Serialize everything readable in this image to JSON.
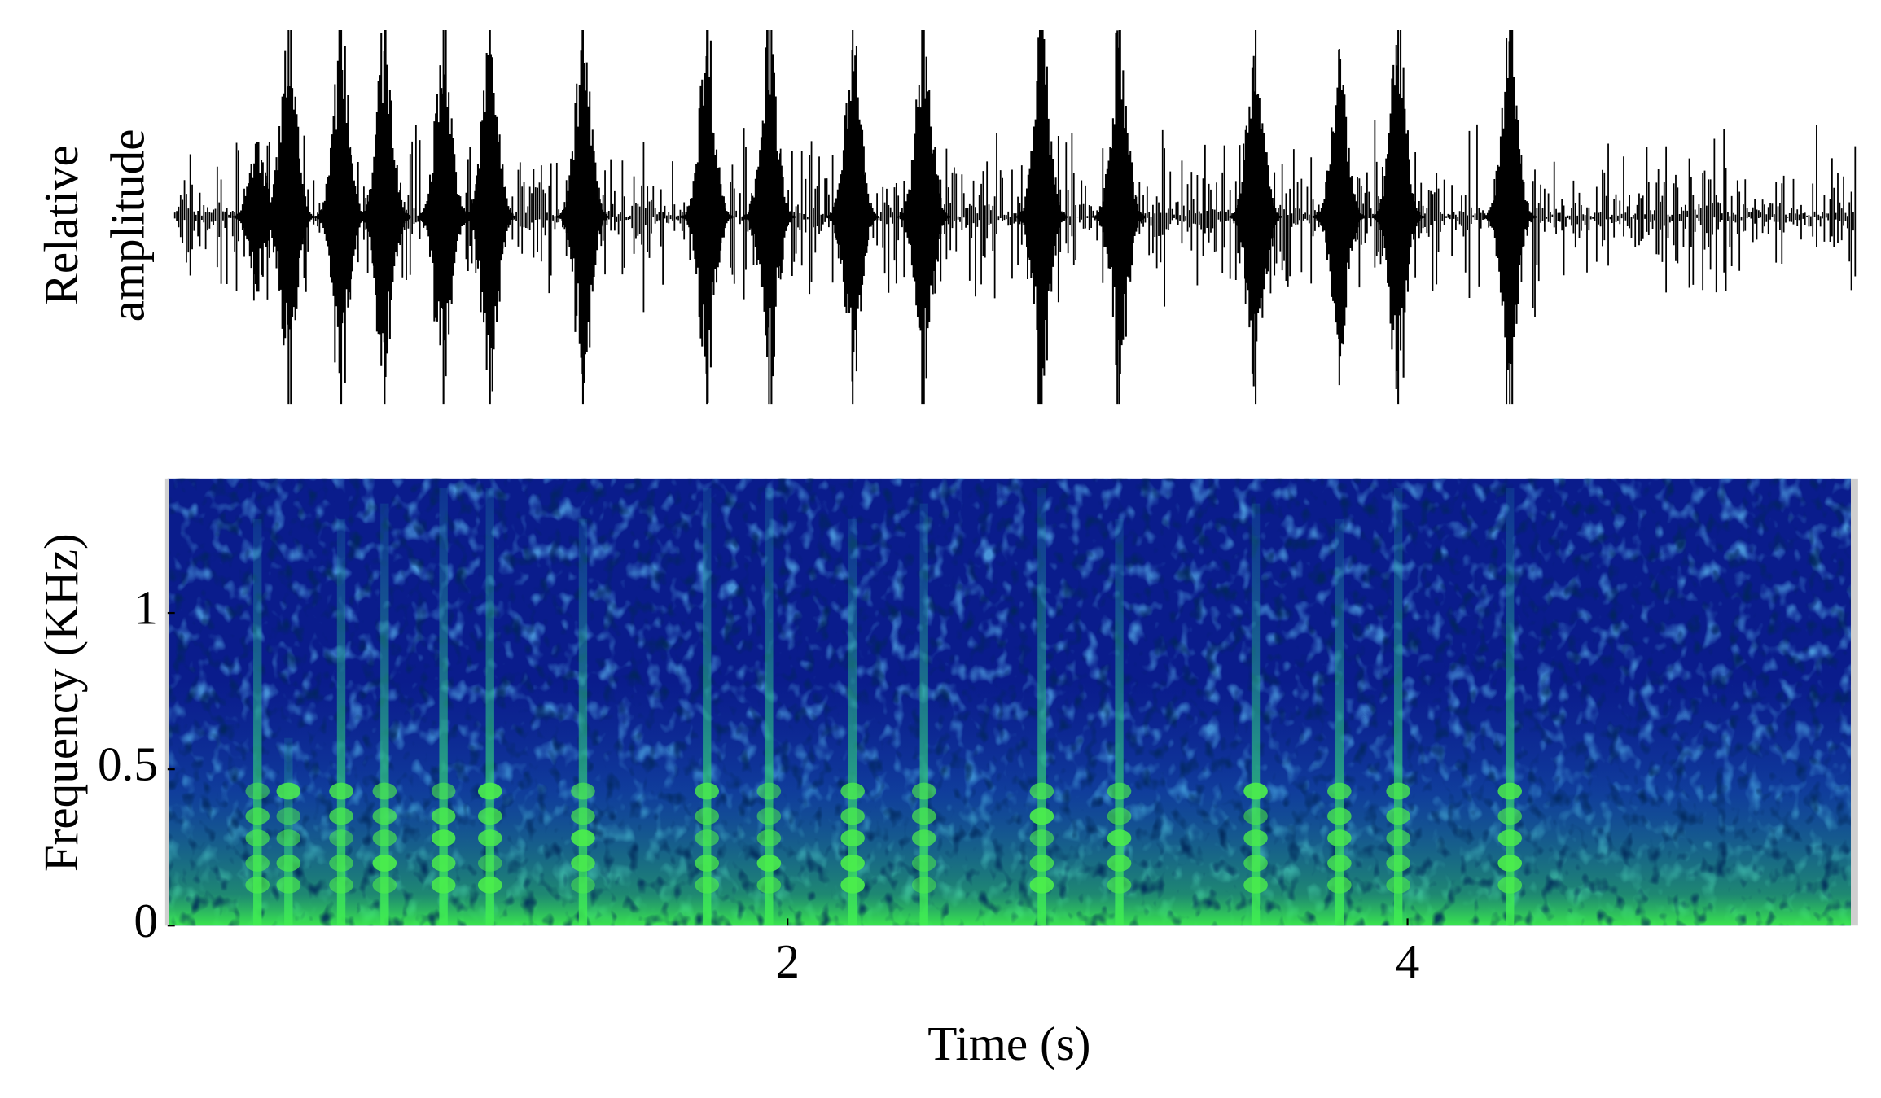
{
  "chart_data": [
    {
      "type": "waveform",
      "y_label": [
        "Relative",
        "amplitude"
      ],
      "x": [
        0.29,
        0.39,
        0.56,
        0.7,
        0.89,
        1.04,
        1.34,
        1.74,
        1.94,
        2.21,
        2.44,
        2.82,
        3.07,
        3.51,
        3.78,
        3.97,
        4.33
      ],
      "values": [
        0.4,
        1,
        1,
        1,
        1,
        1,
        1,
        1,
        1,
        1,
        1,
        1,
        1,
        1,
        0.9,
        1,
        1
      ],
      "color": "#000000"
    },
    {
      "type": "spectrogram",
      "x_label": "Time (s)",
      "y_label": "Frequency (KHz)",
      "x": [
        0.29,
        0.39,
        0.56,
        0.7,
        0.89,
        1.04,
        1.34,
        1.74,
        1.94,
        2.21,
        2.44,
        2.82,
        3.07,
        3.51,
        3.78,
        3.97,
        4.33
      ],
      "values": [
        1.3,
        0.6,
        1.3,
        1.35,
        1.4,
        1.4,
        1.3,
        1.4,
        1.4,
        1.3,
        1.35,
        1.4,
        1.3,
        1.35,
        1.3,
        1.4,
        1.4
      ],
      "xlim": [
        0,
        5.43
      ],
      "ylim": [
        0,
        1.43
      ],
      "xticks": [
        2,
        4
      ],
      "yticks": [
        0,
        0.5,
        1
      ],
      "color": "#0a1c8c",
      "highlight_color": "#4cf04a"
    }
  ]
}
